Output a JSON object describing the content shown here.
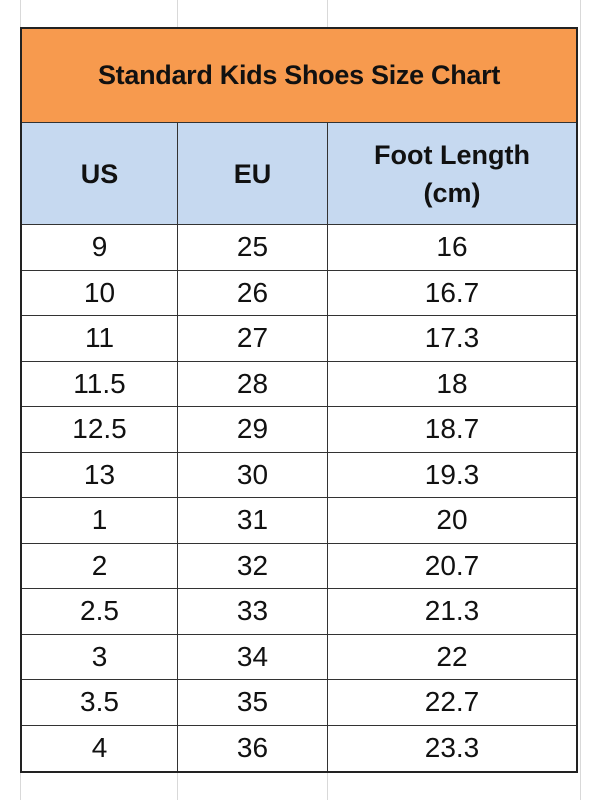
{
  "title": "Standard Kids Shoes Size Chart",
  "headers": [
    "US",
    "EU",
    "Foot Length (cm)"
  ],
  "header_lines": {
    "foot_line1": "Foot Length",
    "foot_line2": "(cm)"
  },
  "colors": {
    "title_bg": "#f79a4e",
    "header_bg": "#c6d9f0"
  },
  "rows": [
    [
      "9",
      "25",
      "16"
    ],
    [
      "10",
      "26",
      "16.7"
    ],
    [
      "11",
      "27",
      "17.3"
    ],
    [
      "11.5",
      "28",
      "18"
    ],
    [
      "12.5",
      "29",
      "18.7"
    ],
    [
      "13",
      "30",
      "19.3"
    ],
    [
      "1",
      "31",
      "20"
    ],
    [
      "2",
      "32",
      "20.7"
    ],
    [
      "2.5",
      "33",
      "21.3"
    ],
    [
      "3",
      "34",
      "22"
    ],
    [
      "3.5",
      "35",
      "22.7"
    ],
    [
      "4",
      "36",
      "23.3"
    ]
  ]
}
